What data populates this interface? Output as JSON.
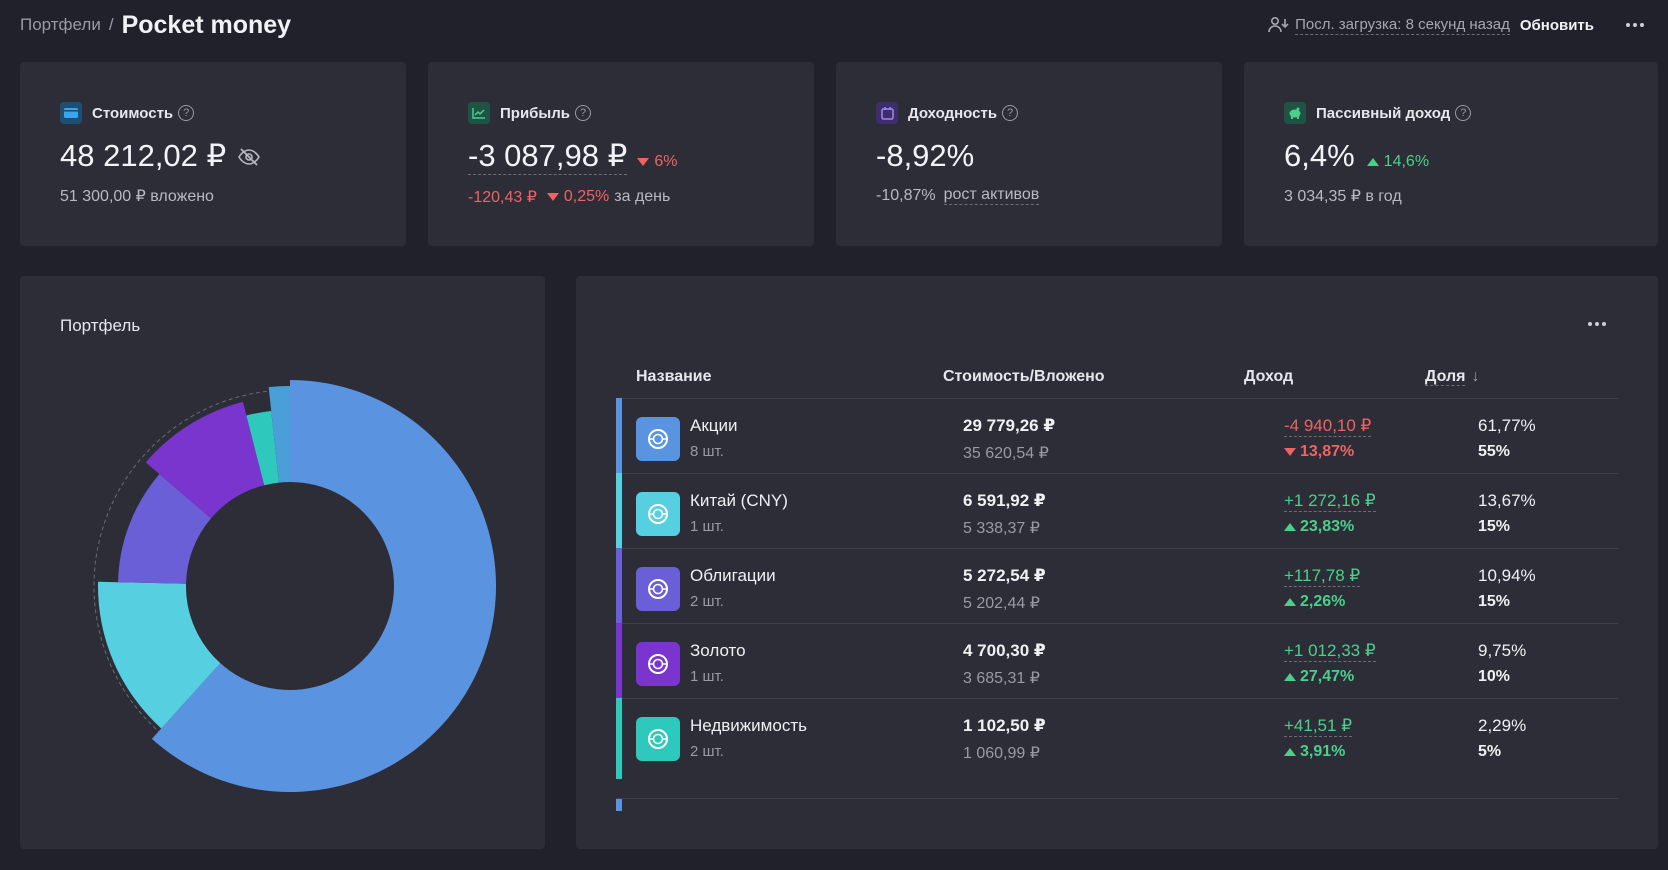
{
  "breadcrumb": {
    "parent": "Портфели",
    "separator": "/",
    "current": "Pocket money"
  },
  "top": {
    "last_load": "Посл. загрузка: 8 секунд назад",
    "refresh": "Обновить"
  },
  "stats": {
    "value": {
      "label": "Стоимость",
      "amount": "48 212,02 ₽",
      "invested": "51 300,00 ₽ вложено"
    },
    "profit": {
      "label": "Прибыль",
      "amount": "-3 087,98 ₽",
      "change": "6%",
      "day_amount": "-120,43 ₽",
      "day_change": "0,25%",
      "day_suffix": "за день"
    },
    "yield": {
      "label": "Доходность",
      "amount": "-8,92%",
      "sub_value": "-10,87%",
      "sub_label": "рост активов"
    },
    "passive": {
      "label": "Пассивный доход",
      "amount": "6,4%",
      "change": "14,6%",
      "per_year": "3 034,35 ₽ в год"
    }
  },
  "portfolio": {
    "title": "Портфель"
  },
  "table": {
    "headers": {
      "name": "Название",
      "value": "Стоимость/Вложено",
      "income": "Доход",
      "share": "Доля"
    },
    "rows": [
      {
        "name": "Акции",
        "qty": "8 шт.",
        "value": "29 779,26 ₽",
        "invested": "35 620,54 ₽",
        "income": "-4 940,10 ₽",
        "income_pct": "13,87%",
        "trend": "down",
        "share": "61,77%",
        "target": "55%",
        "color": "#5a94e0"
      },
      {
        "name": "Китай (CNY)",
        "qty": "1 шт.",
        "value": "6 591,92 ₽",
        "invested": "5 338,37 ₽",
        "income": "+1 272,16 ₽",
        "income_pct": "23,83%",
        "trend": "up",
        "share": "13,67%",
        "target": "15%",
        "color": "#56d0e0"
      },
      {
        "name": "Облигации",
        "qty": "2 шт.",
        "value": "5 272,54 ₽",
        "invested": "5 202,44 ₽",
        "income": "+117,78 ₽",
        "income_pct": "2,26%",
        "trend": "up",
        "share": "10,94%",
        "target": "15%",
        "color": "#6a5fd6"
      },
      {
        "name": "Золото",
        "qty": "1 шт.",
        "value": "4 700,30 ₽",
        "invested": "3 685,31 ₽",
        "income": "+1 012,33 ₽",
        "income_pct": "27,47%",
        "trend": "up",
        "share": "9,75%",
        "target": "10%",
        "color": "#7a35cf"
      },
      {
        "name": "Недвижимость",
        "qty": "2 шт.",
        "value": "1 102,50 ₽",
        "invested": "1 060,99 ₽",
        "income": "+41,51 ₽",
        "income_pct": "3,91%",
        "trend": "up",
        "share": "2,29%",
        "target": "5%",
        "color": "#2ec9bc"
      }
    ]
  },
  "donut_data": {
    "type": "pie",
    "categories": [
      "Акции",
      "Китай (CNY)",
      "Облигации",
      "Золото",
      "Недвижимость"
    ],
    "values": [
      61.77,
      13.67,
      10.94,
      9.75,
      2.29
    ],
    "colors": [
      "#5a94e0",
      "#56d0e0",
      "#6a5fd6",
      "#7a35cf",
      "#2ec9bc"
    ],
    "extra_color": "#4a9fd8"
  }
}
